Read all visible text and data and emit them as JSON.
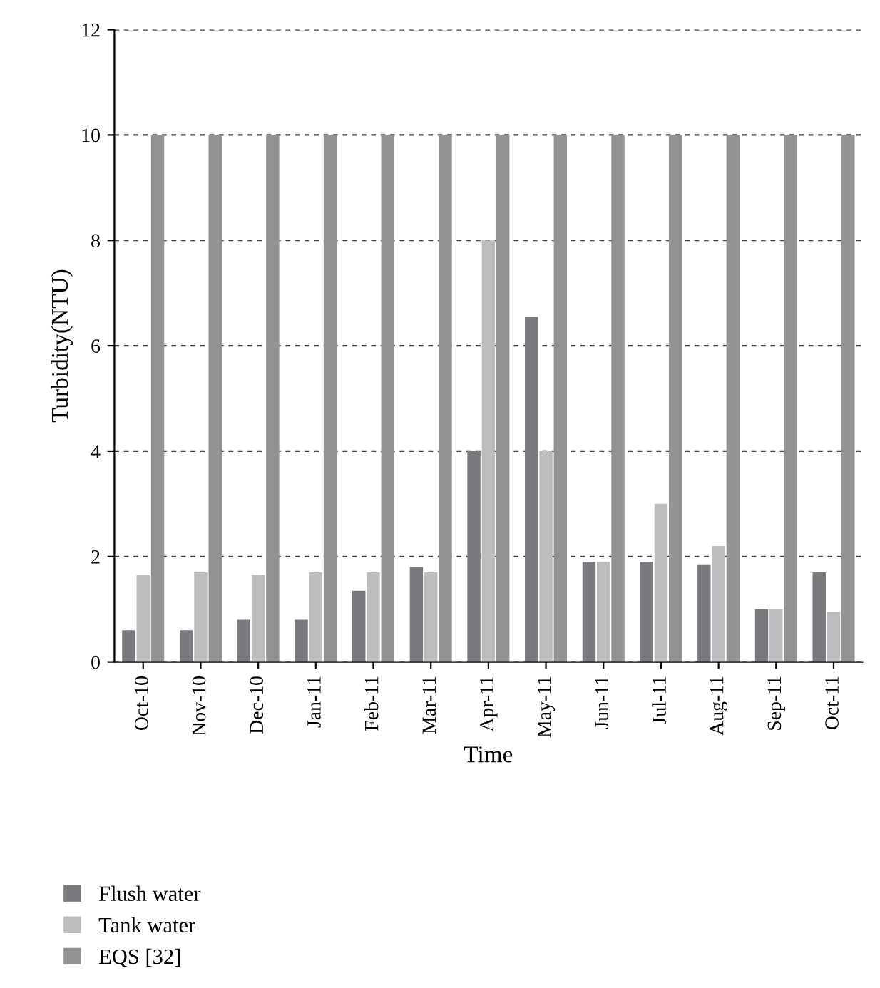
{
  "chart_data": {
    "type": "bar",
    "categories": [
      "Oct-10",
      "Nov-10",
      "Dec-10",
      "Jan-11",
      "Feb-11",
      "Mar-11",
      "Apr-11",
      "May-11",
      "Jun-11",
      "Jul-11",
      "Aug-11",
      "Sep-11",
      "Oct-11"
    ],
    "series": [
      {
        "name": "Flush water",
        "color": "#7a7a7e",
        "values": [
          0.6,
          0.6,
          0.8,
          0.8,
          1.35,
          1.8,
          4.0,
          6.55,
          1.9,
          1.9,
          1.85,
          1.0,
          1.7
        ]
      },
      {
        "name": "Tank water",
        "color": "#bdbdbf",
        "values": [
          1.65,
          1.7,
          1.65,
          1.7,
          1.7,
          1.7,
          8.0,
          4.0,
          1.9,
          3.0,
          2.2,
          1.0,
          0.95
        ]
      },
      {
        "name": "EQS [32]",
        "color": "#939396",
        "values": [
          10,
          10,
          10,
          10,
          10,
          10,
          10,
          10,
          10,
          10,
          10,
          10,
          10
        ]
      }
    ],
    "xlabel": "Time",
    "ylabel": "Turbidity(NTU)",
    "ylim": [
      0,
      12
    ],
    "yticks": [
      0,
      2,
      4,
      6,
      8,
      10,
      12
    ],
    "grid": "y",
    "legend": "bottom left"
  }
}
